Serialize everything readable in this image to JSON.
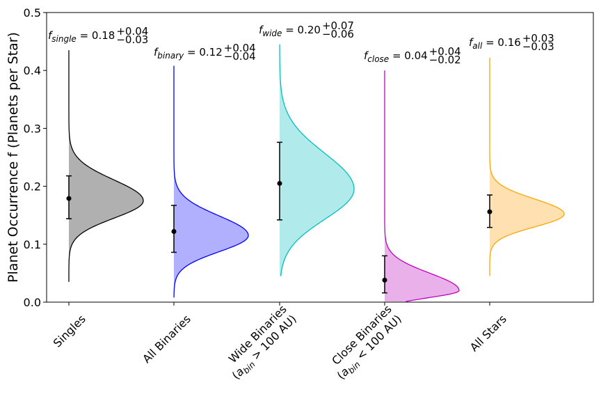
{
  "chart_data": {
    "type": "violin-half",
    "title": "",
    "ylabel": "Planet Occurrence f (Planets per Star)",
    "xlabel": "",
    "ylim": [
      0.0,
      0.5
    ],
    "yticks": [
      "0.0",
      "0.1",
      "0.2",
      "0.3",
      "0.4",
      "0.5"
    ],
    "categories": [
      {
        "lines": [
          "Singles"
        ]
      },
      {
        "lines": [
          "All Binaries"
        ]
      },
      {
        "lines": [
          "Wide Binaries",
          "(a_bin > 100 AU)"
        ]
      },
      {
        "lines": [
          "Close Binaries",
          "(a_bin < 100 AU)"
        ]
      },
      {
        "lines": [
          "All Stars"
        ]
      }
    ],
    "series": [
      {
        "name": "Singles",
        "sym": "f",
        "sub": "single",
        "value": "0.18",
        "plus": "+0.04",
        "minus": "−0.03",
        "point": 0.179,
        "err_low": 0.144,
        "err_high": 0.218,
        "mode": 0.175,
        "sigma_low": 0.03,
        "sigma_high": 0.036,
        "tail_min": 0.035,
        "tail_max": 0.435,
        "fill": "#b0b0b0",
        "edge": "#000000"
      },
      {
        "name": "All Binaries",
        "sym": "f",
        "sub": "binary",
        "value": "0.12",
        "plus": "+0.04",
        "minus": "−0.04",
        "point": 0.122,
        "err_low": 0.086,
        "err_high": 0.167,
        "mode": 0.115,
        "sigma_low": 0.028,
        "sigma_high": 0.034,
        "tail_min": 0.008,
        "tail_max": 0.408,
        "fill": "#b0b0ff",
        "edge": "#0000ff"
      },
      {
        "name": "Wide Binaries",
        "sym": "f",
        "sub": "wide",
        "value": "0.20",
        "plus": "+0.07",
        "minus": "−0.06",
        "point": 0.205,
        "err_low": 0.142,
        "err_high": 0.276,
        "mode": 0.195,
        "sigma_low": 0.052,
        "sigma_high": 0.062,
        "tail_min": 0.045,
        "tail_max": 0.445,
        "fill": "#b0eaea",
        "edge": "#00c0c0"
      },
      {
        "name": "Close Binaries",
        "sym": "f",
        "sub": "close",
        "value": "0.04",
        "plus": "+0.04",
        "minus": "−0.02",
        "point": 0.038,
        "err_low": 0.016,
        "err_high": 0.08,
        "mode": 0.02,
        "sigma_low": 0.012,
        "sigma_high": 0.03,
        "tail_min": 0.001,
        "tail_max": 0.4,
        "fill": "#eab0ea",
        "edge": "#c000c0"
      },
      {
        "name": "All Stars",
        "sym": "f",
        "sub": "all",
        "value": "0.16",
        "plus": "+0.03",
        "minus": "−0.03",
        "point": 0.156,
        "err_low": 0.129,
        "err_high": 0.185,
        "mode": 0.152,
        "sigma_low": 0.022,
        "sigma_high": 0.026,
        "tail_min": 0.045,
        "tail_max": 0.422,
        "fill": "#ffe0b0",
        "edge": "#ffa500"
      }
    ]
  }
}
